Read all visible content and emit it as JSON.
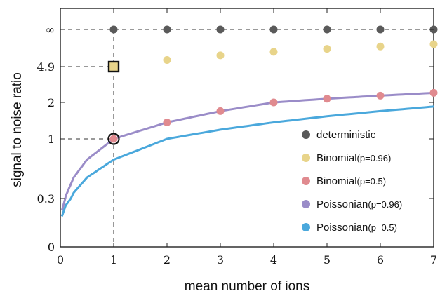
{
  "chart_data": {
    "type": "scatter",
    "xlabel": "mean number of ions",
    "ylabel": "signal to noise ratio",
    "xlim": [
      0,
      7
    ],
    "x_ticks": [
      "0",
      "1",
      "2",
      "3",
      "4",
      "5",
      "6",
      "7"
    ],
    "y_ticks": [
      {
        "label": "0",
        "value": 0
      },
      {
        "label": "0.3",
        "value": 0.3
      },
      {
        "label": "1",
        "value": 1
      },
      {
        "label": "2",
        "value": 2
      },
      {
        "label": "4.9",
        "value": 4.9
      },
      {
        "label": "∞",
        "value": "infinity"
      }
    ],
    "y_scale": "nonlinear (infinity at top)",
    "grid": false,
    "legend_position": "right",
    "series": [
      {
        "name": "deterministic",
        "kind": "points",
        "color": "#5a5a5a",
        "x": [
          1,
          2,
          3,
          4,
          5,
          6,
          7
        ],
        "y": [
          "infinity",
          "infinity",
          "infinity",
          "infinity",
          "infinity",
          "infinity",
          "infinity"
        ]
      },
      {
        "name": "Binomial",
        "param": "(p=0.96)",
        "kind": "points",
        "color": "#e8d48a",
        "x": [
          1,
          2,
          3,
          4,
          5,
          6,
          7
        ],
        "y": [
          4.9,
          6.9,
          8.5,
          9.8,
          11.0,
          12.0,
          13.0
        ]
      },
      {
        "name": "Binomial",
        "param": "(p=0.5)",
        "kind": "points",
        "color": "#e08a8f",
        "x": [
          1,
          2,
          3,
          4,
          5,
          6,
          7
        ],
        "y": [
          1.0,
          1.41,
          1.73,
          2.0,
          2.24,
          2.45,
          2.65
        ]
      },
      {
        "name": "Poissonian",
        "param": "(p=0.96)",
        "kind": "line",
        "color": "#9a8cc8",
        "x": [
          0.03,
          0.1,
          0.25,
          0.5,
          1,
          2,
          3,
          4,
          5,
          6,
          7
        ],
        "y": [
          0.17,
          0.32,
          0.5,
          0.71,
          1.0,
          1.41,
          1.73,
          2.0,
          2.24,
          2.45,
          2.65
        ]
      },
      {
        "name": "Poissonian",
        "param": "(p=0.5)",
        "kind": "line",
        "color": "#4aa8dc",
        "x": [
          0.03,
          0.1,
          0.25,
          0.5,
          1,
          2,
          3,
          4,
          5,
          6,
          7
        ],
        "y": [
          0.12,
          0.22,
          0.35,
          0.5,
          0.71,
          1.0,
          1.22,
          1.41,
          1.58,
          1.73,
          1.87
        ]
      }
    ],
    "highlight_markers": [
      {
        "shape": "square",
        "x": 1,
        "y": 4.9
      },
      {
        "shape": "circle",
        "x": 1,
        "y": 1
      }
    ],
    "reference_lines": [
      {
        "orientation": "horizontal",
        "y": "infinity",
        "style": "dashed"
      },
      {
        "orientation": "horizontal",
        "y": 4.9,
        "x_end": 1,
        "style": "dashed"
      },
      {
        "orientation": "horizontal",
        "y": 1,
        "x_end": 1,
        "style": "dashed"
      },
      {
        "orientation": "vertical",
        "x": 1,
        "style": "dashed"
      }
    ]
  }
}
